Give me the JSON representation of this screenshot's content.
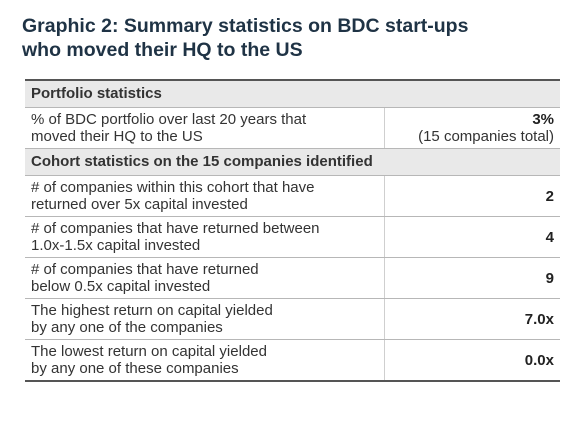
{
  "title": {
    "line1": "Graphic 2: Summary statistics on BDC start-ups",
    "line2": "who moved their HQ to the US"
  },
  "sections": {
    "portfolio": "Portfolio statistics",
    "cohort": "Cohort statistics on the 15 companies identified"
  },
  "rows": [
    {
      "label_line1": "% of BDC portfolio over last 20 years that",
      "label_line2": "moved their HQ to the US",
      "value": "3%",
      "note": "(15 companies total)"
    },
    {
      "label_line1": "# of companies within this cohort that have",
      "label_line2": "returned over 5x capital invested",
      "value": "2"
    },
    {
      "label_line1": "# of companies that have returned between",
      "label_line2": "1.0x-1.5x capital invested",
      "value": "4"
    },
    {
      "label_line1": "# of companies that have returned",
      "label_line2": "below 0.5x capital invested",
      "value": "9"
    },
    {
      "label_line1": "The highest return on capital yielded",
      "label_line2": "by any one of the companies",
      "value": "7.0x"
    },
    {
      "label_line1": "The lowest return on capital yielded",
      "label_line2": "by any one of these companies",
      "value": "0.0x"
    }
  ]
}
